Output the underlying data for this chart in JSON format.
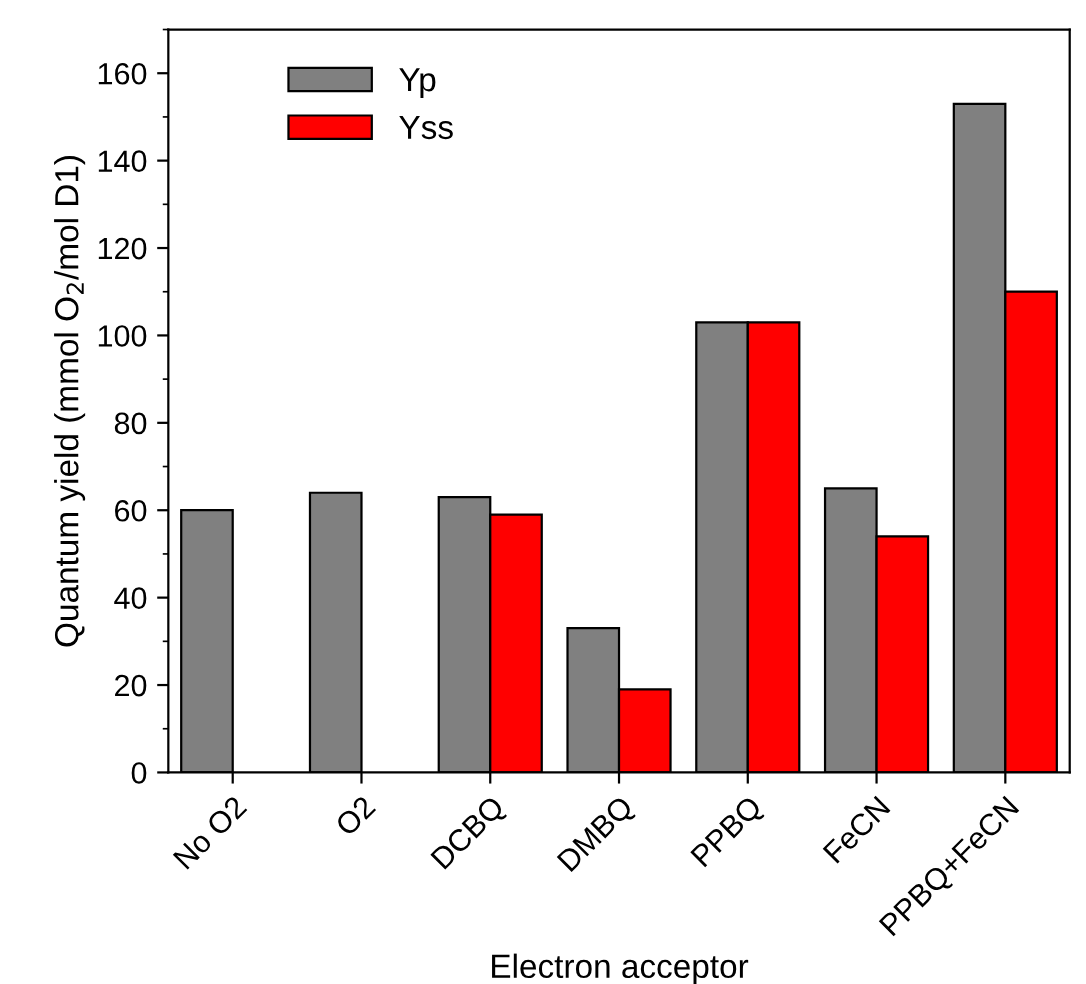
{
  "chart_data": {
    "type": "bar",
    "xlabel": "Electron acceptor",
    "ylabel": "Quantum yield (mmol O$_{2}$/mol D1)",
    "categories": [
      "No O2",
      "O2",
      "DCBQ",
      "DMBQ",
      "PPBQ",
      "FeCN",
      "PPBQ+FeCN"
    ],
    "series": [
      {
        "name": "Yp",
        "color": "#808080",
        "values": [
          60,
          64,
          63,
          33,
          103,
          65,
          153
        ]
      },
      {
        "name": "Yss",
        "color": "#ff0000",
        "values": [
          null,
          null,
          59,
          19,
          103,
          54,
          110
        ]
      }
    ],
    "ylim": [
      0,
      170
    ],
    "yticks": [
      0,
      20,
      40,
      60,
      80,
      100,
      120,
      140,
      160
    ],
    "grid": false,
    "legend": "top left"
  }
}
